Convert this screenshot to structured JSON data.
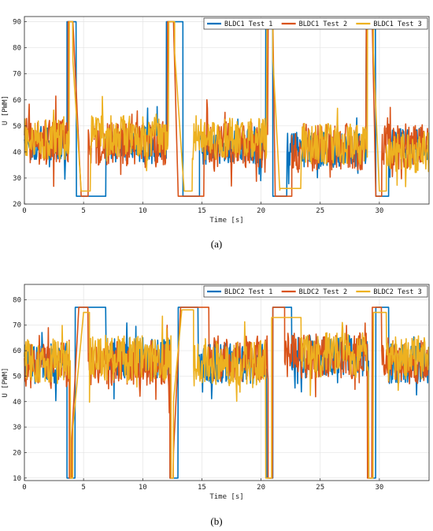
{
  "colors": {
    "test1": "#0072BD",
    "test2": "#D95319",
    "test3": "#EDB120"
  },
  "chart_data": [
    {
      "type": "line",
      "caption": "(a)",
      "xlabel": "Time [s]",
      "ylabel": "U [PWM]",
      "xlim": [
        0,
        34.2
      ],
      "ylim": [
        20,
        92
      ],
      "xticks": [
        0,
        5,
        10,
        15,
        20,
        25,
        30
      ],
      "yticks": [
        20,
        30,
        40,
        50,
        60,
        70,
        80,
        90
      ],
      "legend_position": "top-right",
      "grid": true,
      "series": [
        {
          "name": "BLDC1 Test 1",
          "color_key": "test1",
          "low": 23,
          "high": 90,
          "noise_amp": 7,
          "segments": [
            [
              0,
              3.6,
              "n",
              43
            ],
            [
              3.6,
              4.4,
              "h"
            ],
            [
              4.4,
              6.9,
              "l"
            ],
            [
              6.9,
              12.0,
              "n",
              43
            ],
            [
              12.0,
              13.4,
              "h"
            ],
            [
              13.4,
              14.8,
              "l"
            ],
            [
              14.8,
              20.4,
              "n",
              42
            ],
            [
              20.4,
              21.0,
              "h"
            ],
            [
              21.0,
              22.2,
              "l"
            ],
            [
              22.2,
              28.9,
              "n",
              41
            ],
            [
              28.9,
              29.7,
              "h"
            ],
            [
              29.7,
              30.8,
              "l"
            ],
            [
              30.8,
              34.2,
              "n",
              42
            ]
          ]
        },
        {
          "name": "BLDC1 Test 2",
          "color_key": "test2",
          "low": 23,
          "high": 90,
          "noise_amp": 9,
          "segments": [
            [
              0,
              3.7,
              "n",
              44
            ],
            [
              3.7,
              4.1,
              "h"
            ],
            [
              4.1,
              4.8,
              "r",
              90,
              23
            ],
            [
              4.8,
              5.4,
              "l"
            ],
            [
              5.4,
              12.1,
              "n",
              43
            ],
            [
              12.1,
              12.6,
              "h"
            ],
            [
              12.6,
              13.0,
              "r",
              90,
              23
            ],
            [
              13.0,
              15.2,
              "l"
            ],
            [
              15.2,
              20.6,
              "n",
              43
            ],
            [
              20.6,
              21.0,
              "h"
            ],
            [
              21.0,
              21.2,
              "r",
              90,
              23
            ],
            [
              21.2,
              22.6,
              "l"
            ],
            [
              22.6,
              28.9,
              "n",
              42
            ],
            [
              28.9,
              29.4,
              "h"
            ],
            [
              29.4,
              29.7,
              "r",
              90,
              23
            ],
            [
              29.7,
              30.2,
              "l"
            ],
            [
              30.2,
              34.2,
              "n",
              42
            ]
          ]
        },
        {
          "name": "BLDC1 Test 3",
          "color_key": "test3",
          "low": 23,
          "high": 90,
          "noise_amp": 8,
          "segments": [
            [
              0,
              3.8,
              "n",
              45
            ],
            [
              3.8,
              4.1,
              "h"
            ],
            [
              4.1,
              4.8,
              "r",
              75,
              25
            ],
            [
              4.8,
              5.6,
              "l",
              25
            ],
            [
              5.6,
              12.2,
              "n",
              46
            ],
            [
              12.2,
              12.7,
              "h"
            ],
            [
              12.7,
              13.5,
              "r",
              78,
              25
            ],
            [
              13.5,
              14.2,
              "l",
              25
            ],
            [
              14.2,
              20.5,
              "n",
              45
            ],
            [
              20.5,
              21.0,
              "h"
            ],
            [
              21.0,
              21.6,
              "r",
              76,
              24
            ],
            [
              21.6,
              23.4,
              "l",
              26
            ],
            [
              23.4,
              29.0,
              "n",
              43
            ],
            [
              29.0,
              29.5,
              "h"
            ],
            [
              29.5,
              30.0,
              "r",
              78,
              25
            ],
            [
              30.0,
              30.6,
              "l",
              25
            ],
            [
              30.6,
              34.2,
              "n",
              40
            ]
          ]
        }
      ]
    },
    {
      "type": "line",
      "caption": "(b)",
      "xlabel": "Time [s]",
      "ylabel": "U [PWM]",
      "xlim": [
        0,
        34.2
      ],
      "ylim": [
        9,
        86
      ],
      "xticks": [
        0,
        5,
        10,
        15,
        20,
        25,
        30
      ],
      "yticks": [
        10,
        20,
        30,
        40,
        50,
        60,
        70,
        80
      ],
      "legend_position": "top-right",
      "grid": true,
      "series": [
        {
          "name": "BLDC2 Test 1",
          "color_key": "test1",
          "low": 10,
          "high": 77,
          "noise_amp": 8,
          "segments": [
            [
              0,
              3.6,
              "n",
              55
            ],
            [
              3.6,
              4.3,
              "l"
            ],
            [
              4.3,
              6.9,
              "h"
            ],
            [
              6.9,
              12.3,
              "n",
              57
            ],
            [
              12.3,
              13.0,
              "l"
            ],
            [
              13.0,
              14.7,
              "h"
            ],
            [
              14.7,
              20.5,
              "n",
              55
            ],
            [
              20.5,
              21.0,
              "l"
            ],
            [
              21.0,
              22.6,
              "h"
            ],
            [
              22.6,
              29.1,
              "n",
              58
            ],
            [
              29.1,
              29.7,
              "l"
            ],
            [
              29.7,
              30.8,
              "h"
            ],
            [
              30.8,
              34.2,
              "n",
              55
            ]
          ]
        },
        {
          "name": "BLDC2 Test 2",
          "color_key": "test2",
          "low": 10,
          "high": 77,
          "noise_amp": 9,
          "segments": [
            [
              0,
              3.8,
              "n",
              54
            ],
            [
              3.8,
              4.0,
              "l"
            ],
            [
              4.0,
              4.6,
              "r",
              25,
              77
            ],
            [
              4.6,
              5.4,
              "h"
            ],
            [
              5.4,
              12.3,
              "n",
              55
            ],
            [
              12.3,
              12.6,
              "l"
            ],
            [
              12.6,
              13.2,
              "r",
              20,
              77
            ],
            [
              13.2,
              15.6,
              "h"
            ],
            [
              15.6,
              20.6,
              "n",
              57
            ],
            [
              20.6,
              21.0,
              "l"
            ],
            [
              21.0,
              22.0,
              "h"
            ],
            [
              22.0,
              29.0,
              "n",
              58
            ],
            [
              29.0,
              29.4,
              "l"
            ],
            [
              29.4,
              30.2,
              "h"
            ],
            [
              30.2,
              34.2,
              "n",
              56
            ]
          ]
        },
        {
          "name": "BLDC2 Test 3",
          "color_key": "test3",
          "low": 10,
          "high": 77,
          "noise_amp": 9,
          "segments": [
            [
              0,
              3.9,
              "n",
              56
            ],
            [
              3.9,
              4.1,
              "l"
            ],
            [
              4.1,
              5.0,
              "r",
              30,
              75
            ],
            [
              5.0,
              5.5,
              "h",
              75
            ],
            [
              5.5,
              12.4,
              "n",
              57
            ],
            [
              12.4,
              12.6,
              "l"
            ],
            [
              12.6,
              13.3,
              "r",
              40,
              76
            ],
            [
              13.3,
              14.3,
              "h",
              76
            ],
            [
              14.3,
              20.4,
              "n",
              55
            ],
            [
              20.4,
              20.9,
              "l"
            ],
            [
              20.9,
              23.4,
              "h",
              73
            ],
            [
              23.4,
              29.1,
              "n",
              58
            ],
            [
              29.1,
              29.5,
              "l"
            ],
            [
              29.5,
              30.6,
              "h",
              75
            ],
            [
              30.6,
              34.2,
              "n",
              57
            ]
          ]
        }
      ]
    }
  ]
}
